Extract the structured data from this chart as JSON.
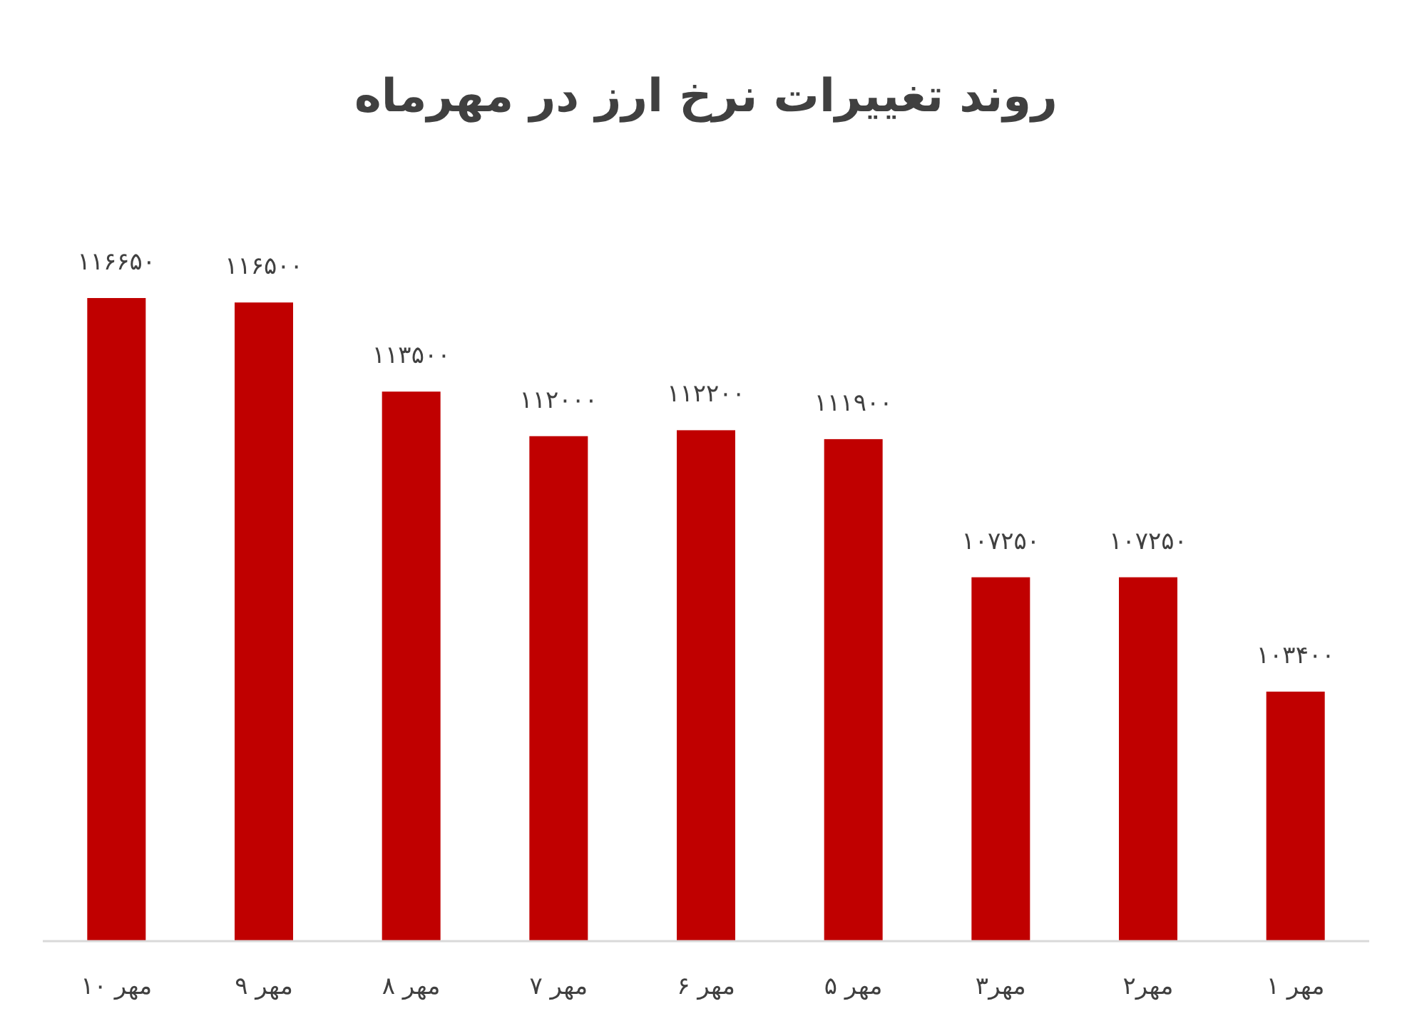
{
  "chart_data": {
    "type": "bar",
    "title": "روند تغییرات نرخ ارز در مهرماه",
    "categories": [
      "مهر ۱۰",
      "مهر ۹",
      "مهر ۸",
      "مهر ۷",
      "مهر ۶",
      "مهر ۵",
      "مهر۳",
      "مهر۲",
      "مهر ۱"
    ],
    "values": [
      116650,
      116500,
      113500,
      112000,
      112200,
      111900,
      107250,
      107250,
      103400
    ],
    "value_labels": [
      "۱۱۶۶۵۰",
      "۱۱۶۵۰۰",
      "۱۱۳۵۰۰",
      "۱۱۲۰۰۰",
      "۱۱۲۲۰۰",
      "۱۱۱۹۰۰",
      "۱۰۷۲۵۰",
      "۱۰۷۲۵۰",
      "۱۰۳۴۰۰"
    ],
    "color": "#c00000",
    "ylim": [
      95000,
      116650
    ]
  }
}
